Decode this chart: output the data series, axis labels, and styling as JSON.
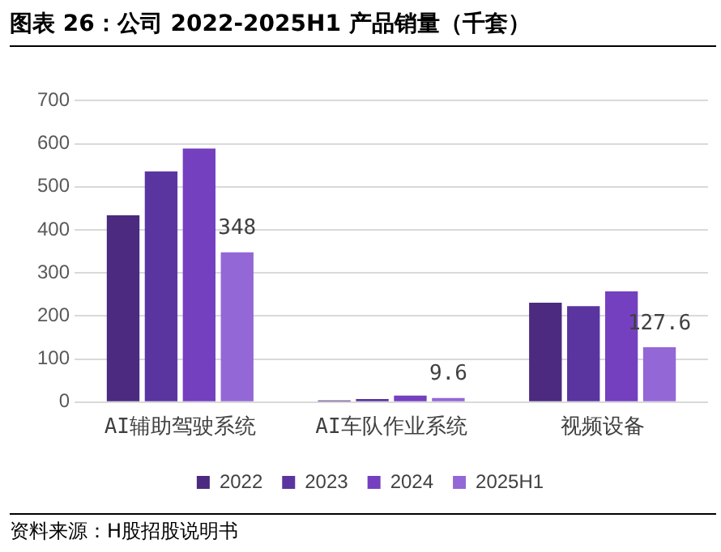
{
  "chart_data": {
    "type": "bar",
    "title": "图表 26：公司 2022-2025H1 产品销量（千套）",
    "categories": [
      "AI辅助驾驶系统",
      "AI车队作业系统",
      "视频设备"
    ],
    "series": [
      {
        "name": "2022",
        "color": "#4b2a7f",
        "values": [
          434,
          4,
          231
        ]
      },
      {
        "name": "2023",
        "color": "#5a35a0",
        "values": [
          536,
          7,
          223
        ]
      },
      {
        "name": "2024",
        "color": "#7440c0",
        "values": [
          589,
          15,
          257
        ]
      },
      {
        "name": "2025H1",
        "color": "#9467d6",
        "values": [
          348,
          9.6,
          127.6
        ],
        "value_labels": [
          "348",
          "9.6",
          "127.6"
        ]
      }
    ],
    "ylim": [
      0,
      700
    ],
    "yticks": [
      0,
      100,
      200,
      300,
      400,
      500,
      600,
      700
    ],
    "grid": "y",
    "legend": "bottom",
    "annotations": [
      "资料来源：H股招股说明书"
    ]
  }
}
